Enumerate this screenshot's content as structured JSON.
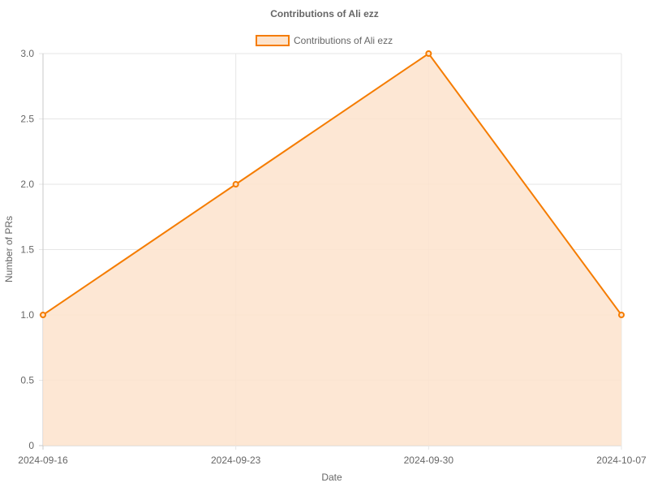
{
  "chart_data": {
    "type": "area",
    "title": "Contributions of Ali ezz",
    "xlabel": "Date",
    "ylabel": "Number of PRs",
    "categories": [
      "2024-09-16",
      "2024-09-23",
      "2024-09-30",
      "2024-10-07"
    ],
    "series": [
      {
        "name": "Contributions of Ali ezz",
        "values": [
          1,
          2,
          3,
          1
        ],
        "color": "#f57c00",
        "fill": "#fde3cc"
      }
    ],
    "ylim": [
      0,
      3
    ],
    "yticks": [
      "0",
      "0.5",
      "1.0",
      "1.5",
      "2.0",
      "2.5",
      "3.0"
    ],
    "ytick_values": [
      0,
      0.5,
      1,
      1.5,
      2,
      2.5,
      3
    ],
    "grid": true,
    "legend": "top-center"
  }
}
